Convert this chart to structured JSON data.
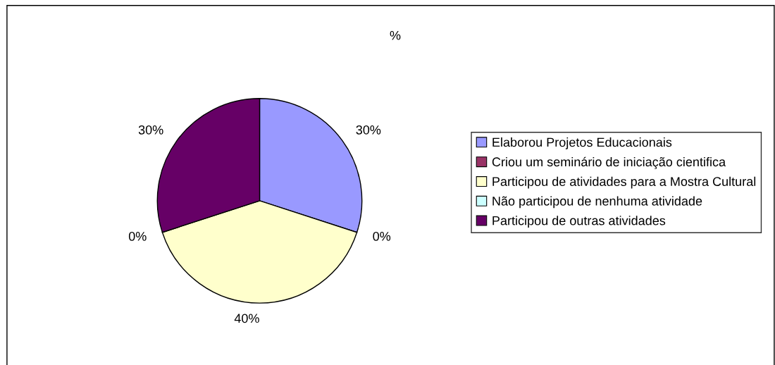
{
  "chart_data": {
    "type": "pie",
    "title": "%",
    "categories": [
      "Elaborou Projetos Educacionais",
      "Criou um seminário de iniciação cientifica",
      "Participou de atividades para a Mostra Cultural",
      "Não participou de nenhuma atividade",
      "Participou de outras atividades"
    ],
    "values": [
      30,
      0,
      40,
      0,
      30
    ],
    "colors": [
      "#9999ff",
      "#993366",
      "#ffffcc",
      "#ccffff",
      "#660066"
    ],
    "value_labels": [
      "30%",
      "0%",
      "40%",
      "0%",
      "30%"
    ],
    "legend": "right"
  }
}
